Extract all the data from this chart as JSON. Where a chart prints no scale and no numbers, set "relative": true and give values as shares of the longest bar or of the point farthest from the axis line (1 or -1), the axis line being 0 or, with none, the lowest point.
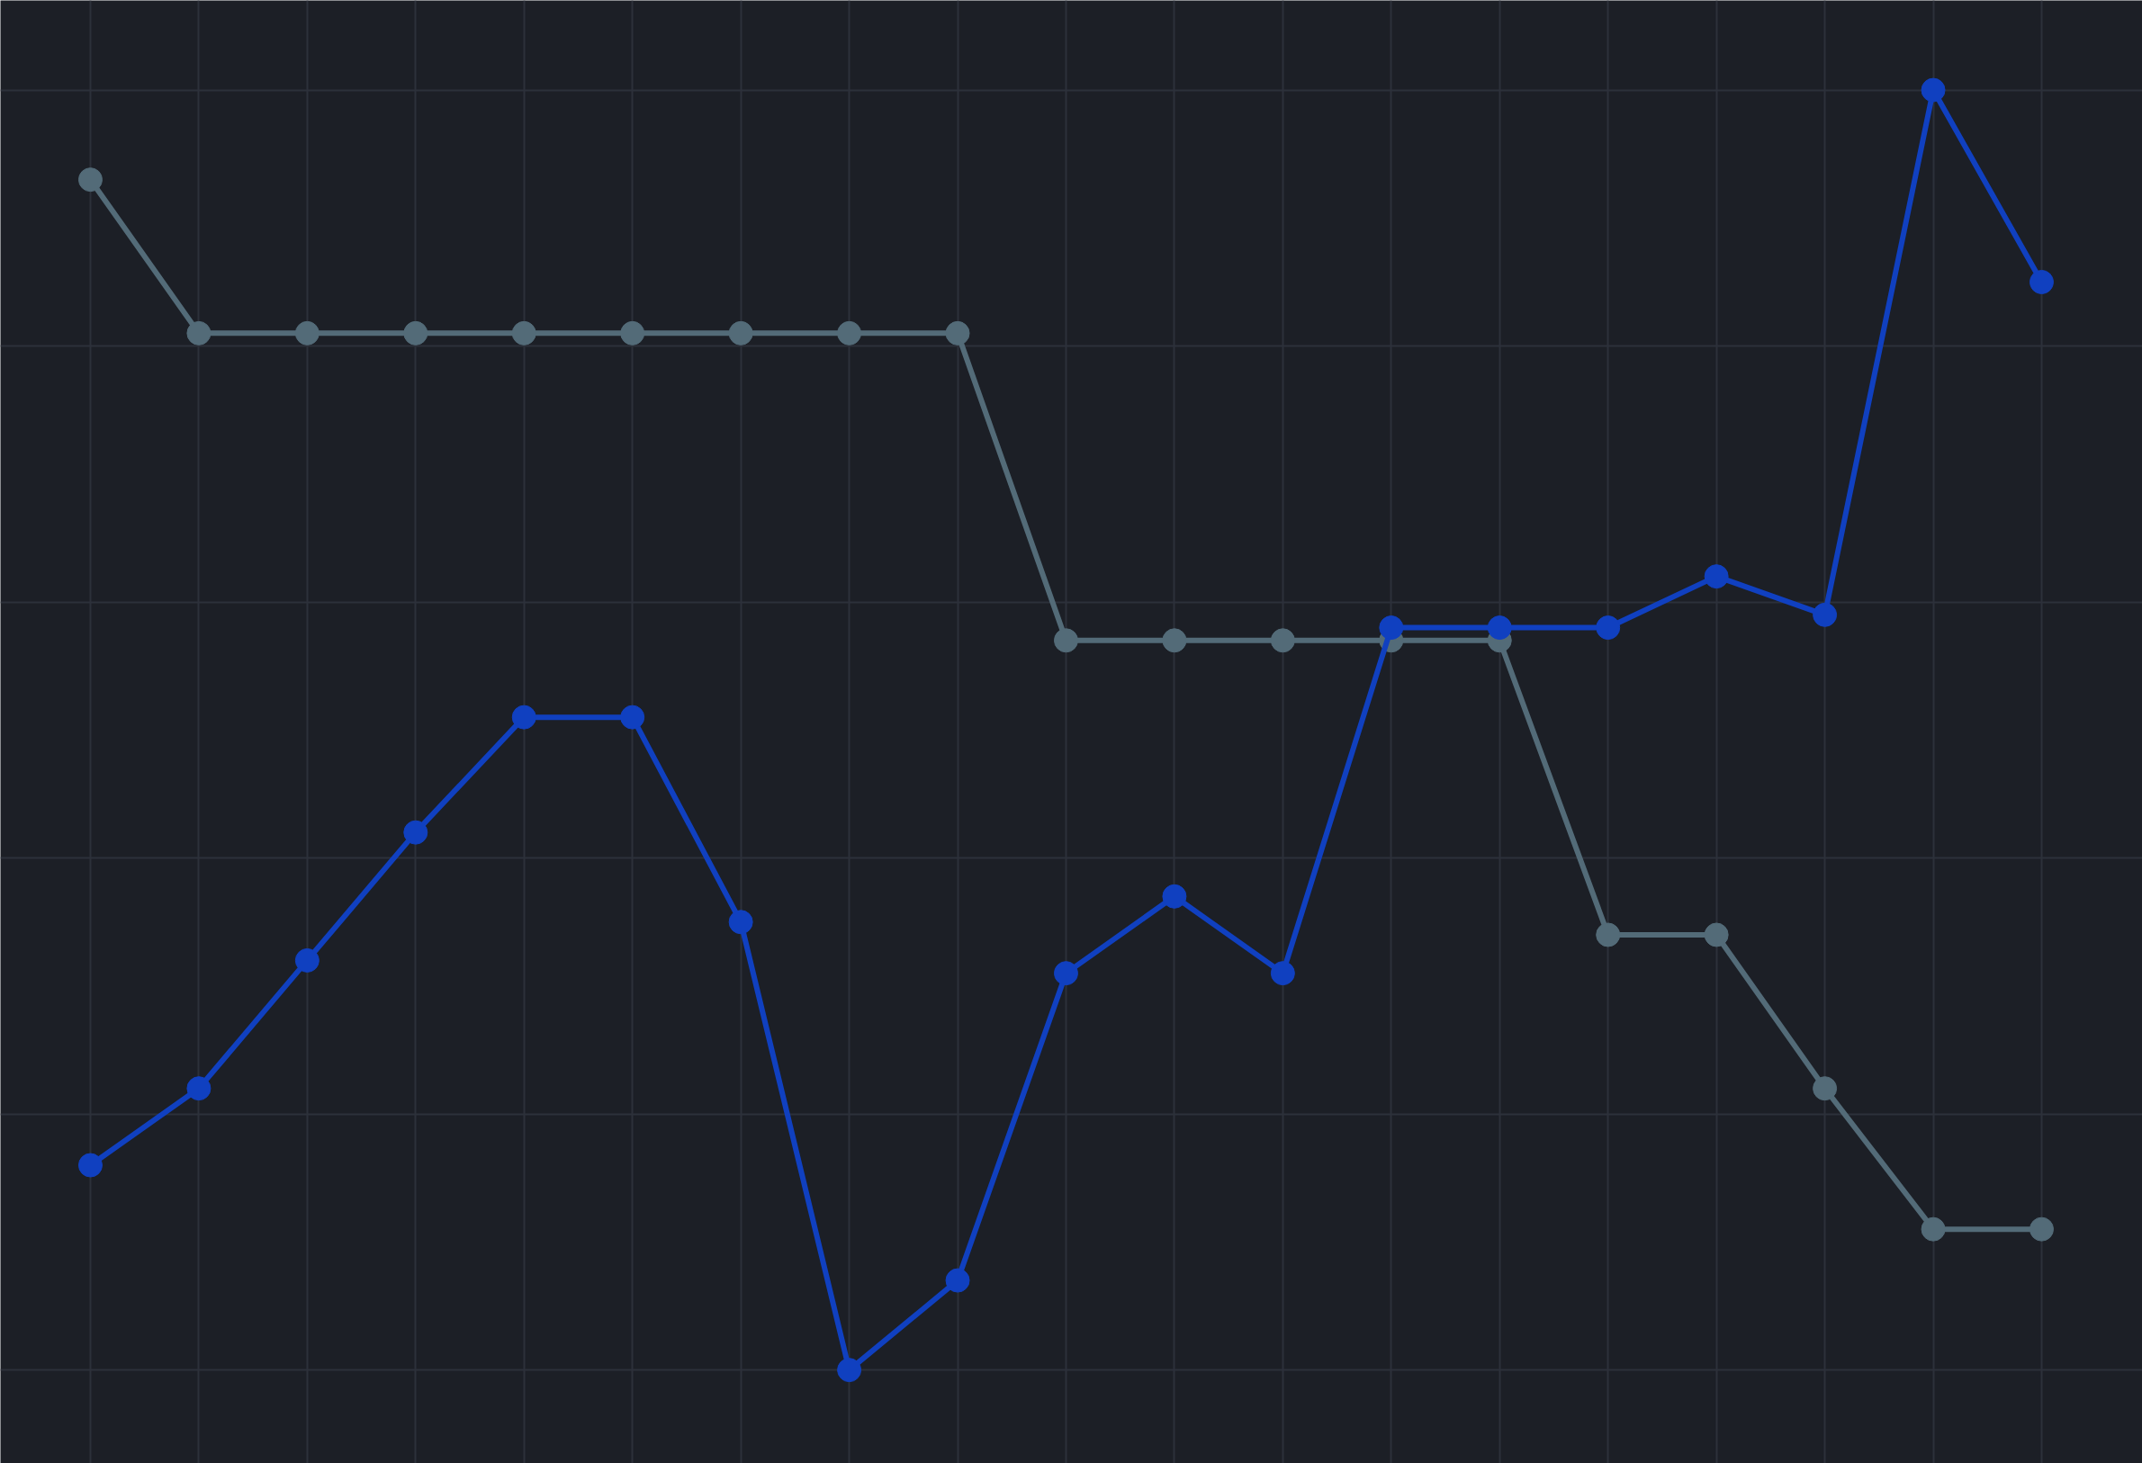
{
  "chart_data": {
    "type": "line",
    "relative": true,
    "grid": true,
    "marker": "circle",
    "line_style": "solid",
    "tick_labels": false,
    "categories": [
      null,
      null,
      null,
      null,
      null,
      null,
      null,
      null,
      null,
      null,
      null,
      null,
      null,
      null,
      null,
      null,
      null,
      null,
      null
    ],
    "series": [
      {
        "color": "#536b78",
        "values": [
          0.93,
          0.81,
          0.81,
          0.81,
          0.81,
          0.81,
          0.81,
          0.81,
          0.81,
          0.57,
          0.57,
          0.57,
          0.57,
          0.57,
          0.34,
          0.34,
          0.22,
          0.11,
          0.11
        ]
      },
      {
        "color": "#1040c0",
        "values": [
          0.16,
          0.22,
          0.32,
          0.42,
          0.51,
          0.51,
          0.35,
          0.0,
          0.07,
          0.31,
          0.37,
          0.31,
          0.58,
          0.58,
          0.58,
          0.62,
          0.59,
          1.0,
          0.85
        ]
      }
    ]
  }
}
